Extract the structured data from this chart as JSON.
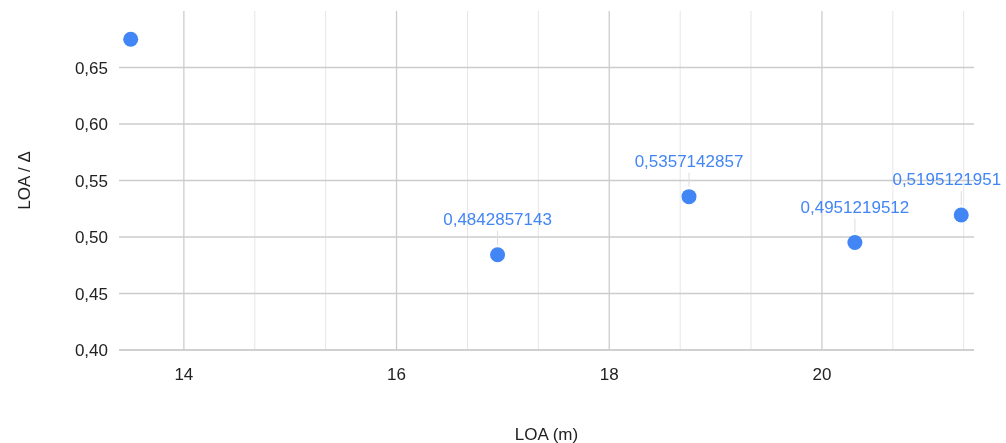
{
  "chart_data": {
    "type": "scatter",
    "xlabel": "LOA (m)",
    "ylabel": "LOA / Δ",
    "x": [
      13.5,
      16.95,
      18.75,
      20.31,
      21.31
    ],
    "series": [
      {
        "color": "#4285f4",
        "values": [
          0.675,
          0.4842857143,
          0.5357142857,
          0.4951219512,
          0.5195121951
        ],
        "value_labels": [
          null,
          "0,4842857143",
          "0,5357142857",
          "0,4951219512",
          "0,5195121951"
        ]
      }
    ],
    "xlim": [
      13.39,
      21.43
    ],
    "xticks": [
      14,
      {
        "value": 14.667,
        "label": null
      },
      {
        "value": 15.333,
        "label": null
      },
      16,
      {
        "value": 16.667,
        "label": null
      },
      {
        "value": 17.333,
        "label": null
      },
      18,
      {
        "value": 18.667,
        "label": null
      },
      {
        "value": 19.333,
        "label": null
      },
      20,
      {
        "value": 20.667,
        "label": null
      },
      {
        "value": 21.333,
        "label": null
      }
    ],
    "ylim": [
      0.4,
      0.7
    ],
    "yticks": [
      {
        "value": 0.4,
        "label": "0,40"
      },
      {
        "value": 0.45,
        "label": "0,45"
      },
      {
        "value": 0.5,
        "label": "0,50"
      },
      {
        "value": 0.55,
        "label": "0,55"
      },
      {
        "value": 0.6,
        "label": "0,60"
      },
      {
        "value": 0.65,
        "label": "0,65"
      }
    ],
    "grid": true,
    "marker": "circle"
  }
}
